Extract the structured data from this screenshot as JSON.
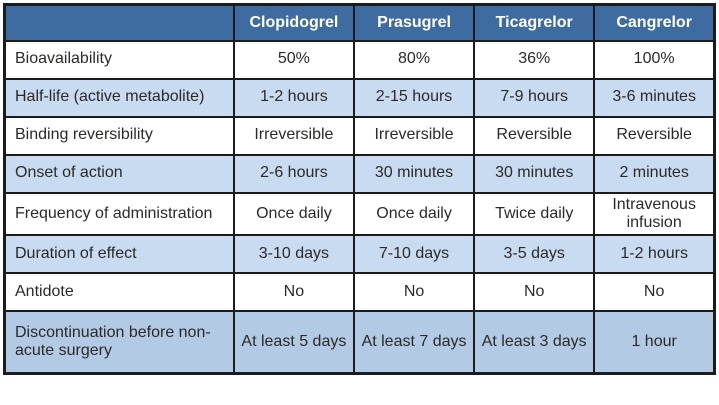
{
  "table": {
    "title_semantic": "P2Y12 inhibitor comparison table",
    "header": {
      "corner": "",
      "columns": [
        "Clopidogrel",
        "Prasugrel",
        "Ticagrelor",
        "Cangrelor"
      ]
    },
    "rows": [
      {
        "label": "Bioavailability",
        "values": [
          "50%",
          "80%",
          "36%",
          "100%"
        ]
      },
      {
        "label": "Half-life (active metabolite)",
        "values": [
          "1-2 hours",
          "2-15 hours",
          "7-9 hours",
          "3-6 minutes"
        ]
      },
      {
        "label": "Binding reversibility",
        "values": [
          "Irreversible",
          "Irreversible",
          "Reversible",
          "Reversible"
        ]
      },
      {
        "label": "Onset of action",
        "values": [
          "2-6 hours",
          "30 minutes",
          "30 minutes",
          "2 minutes"
        ]
      },
      {
        "label": "Frequency of administration",
        "values": [
          "Once daily",
          "Once daily",
          "Twice daily",
          "Intravenous infusion"
        ]
      },
      {
        "label": "Duration of effect",
        "values": [
          "3-10 days",
          "7-10 days",
          "3-5 days",
          "1-2 hours"
        ]
      },
      {
        "label": "Antidote",
        "values": [
          "No",
          "No",
          "No",
          "No"
        ]
      },
      {
        "label": "Discontinuation before non-acute surgery",
        "values": [
          "At least 5 days",
          "At least 7 days",
          "At least 3 days",
          "1 hour"
        ]
      }
    ]
  },
  "colors": {
    "header_bg": "#3e6ca1",
    "header_text": "#ffffff",
    "stripe_blue": "#c8dbf0",
    "last_row_blue": "#b3cae4",
    "grid_border": "#1c1c1c",
    "body_text": "#2a2a28"
  }
}
